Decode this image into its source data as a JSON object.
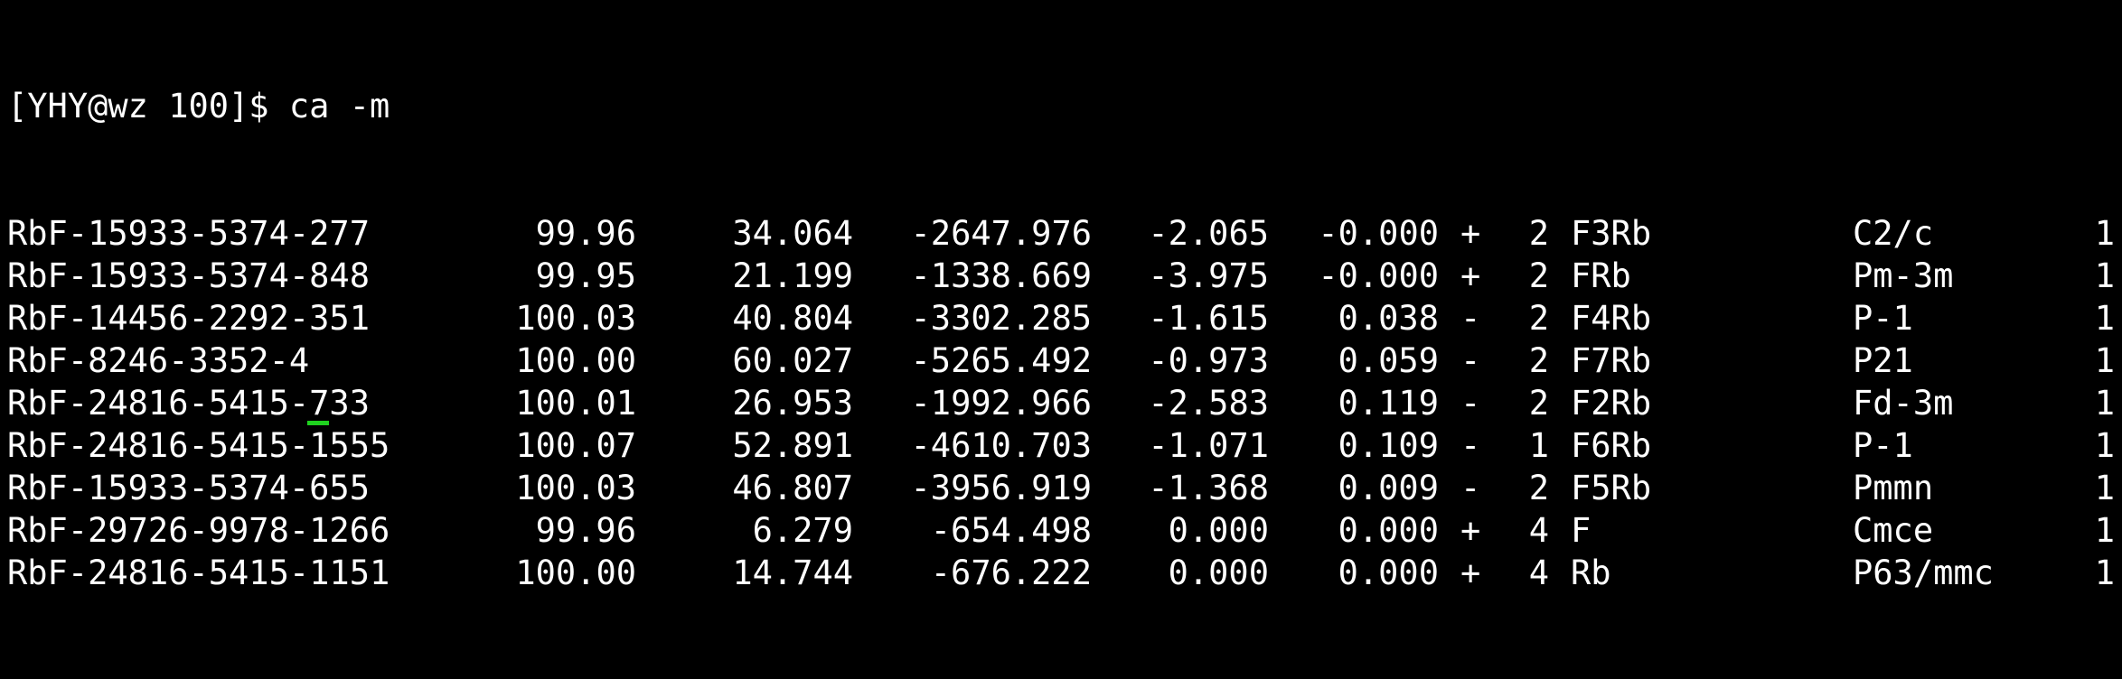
{
  "terminal": {
    "prompt": "[YHY@wz 100]$ ca -m",
    "rows": [
      {
        "name": "RbF-15933-5374-277",
        "v1": "99.96",
        "v2": "34.064",
        "v3": "-2647.976",
        "v4": "-2.065",
        "v5": "-0.000",
        "sign": "+",
        "count": "2",
        "formula": "F3Rb",
        "spacegroup": "C2/c",
        "num": "1"
      },
      {
        "name": "RbF-15933-5374-848",
        "v1": "99.95",
        "v2": "21.199",
        "v3": "-1338.669",
        "v4": "-3.975",
        "v5": "-0.000",
        "sign": "+",
        "count": "2",
        "formula": "FRb",
        "spacegroup": "Pm-3m",
        "num": "1"
      },
      {
        "name": "RbF-14456-2292-351",
        "v1": "100.03",
        "v2": "40.804",
        "v3": "-3302.285",
        "v4": "-1.615",
        "v5": "0.038",
        "sign": "-",
        "count": "2",
        "formula": "F4Rb",
        "spacegroup": "P-1",
        "num": "1"
      },
      {
        "name": "RbF-8246-3352-4",
        "v1": "100.00",
        "v2": "60.027",
        "v3": "-5265.492",
        "v4": "-0.973",
        "v5": "0.059",
        "sign": "-",
        "count": "2",
        "formula": "F7Rb",
        "spacegroup": "P21",
        "num": "1"
      },
      {
        "name": "RbF-24816-5415-733",
        "v1": "100.01",
        "v2": "26.953",
        "v3": "-1992.966",
        "v4": "-2.583",
        "v5": "0.119",
        "sign": "-",
        "count": "2",
        "formula": "F2Rb",
        "spacegroup": "Fd-3m",
        "num": "1"
      },
      {
        "name": "RbF-24816-5415-1555",
        "v1": "100.07",
        "v2": "52.891",
        "v3": "-4610.703",
        "v4": "-1.071",
        "v5": "0.109",
        "sign": "-",
        "count": "1",
        "formula": "F6Rb",
        "spacegroup": "P-1",
        "num": "1"
      },
      {
        "name": "RbF-15933-5374-655",
        "v1": "100.03",
        "v2": "46.807",
        "v3": "-3956.919",
        "v4": "-1.368",
        "v5": "0.009",
        "sign": "-",
        "count": "2",
        "formula": "F5Rb",
        "spacegroup": "Pmmn",
        "num": "1"
      },
      {
        "name": "RbF-29726-9978-1266",
        "v1": "99.96",
        "v2": "6.279",
        "v3": "-654.498",
        "v4": "0.000",
        "v5": "0.000",
        "sign": "+",
        "count": "4",
        "formula": "F",
        "spacegroup": "Cmce",
        "num": "1"
      },
      {
        "name": "RbF-24816-5415-1151",
        "v1": "100.00",
        "v2": "14.744",
        "v3": "-676.222",
        "v4": "0.000",
        "v5": "0.000",
        "sign": "+",
        "count": "4",
        "formula": "Rb",
        "spacegroup": "P63/mmc",
        "num": "1"
      }
    ],
    "colors": {
      "background": "#000000",
      "foreground": "#ffffff",
      "cursor": "#1fd11f"
    }
  }
}
